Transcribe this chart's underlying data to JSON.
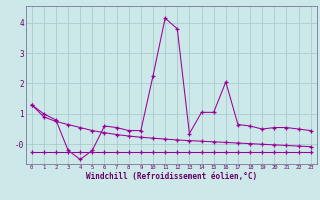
{
  "xlabel": "Windchill (Refroidissement éolien,°C)",
  "background_color": "#cce8e8",
  "grid_color": "#aacccc",
  "line_color": "#990099",
  "x_values": [
    0,
    1,
    2,
    3,
    4,
    5,
    6,
    7,
    8,
    9,
    10,
    11,
    12,
    13,
    14,
    15,
    16,
    17,
    18,
    19,
    20,
    21,
    22,
    23
  ],
  "series1": [
    1.3,
    1.0,
    0.8,
    -0.2,
    -0.5,
    -0.2,
    0.6,
    0.55,
    0.45,
    0.45,
    2.25,
    4.15,
    3.8,
    0.35,
    1.05,
    1.05,
    2.05,
    0.65,
    0.6,
    0.5,
    0.55,
    0.55,
    0.5,
    0.45
  ],
  "series2": [
    -0.25,
    -0.25,
    -0.25,
    -0.25,
    -0.25,
    -0.25,
    -0.25,
    -0.25,
    -0.25,
    -0.25,
    -0.25,
    -0.25,
    -0.25,
    -0.25,
    -0.25,
    -0.25,
    -0.25,
    -0.25,
    -0.25,
    -0.25,
    -0.25,
    -0.25,
    -0.25,
    -0.25
  ],
  "series3": [
    1.3,
    0.9,
    0.75,
    0.65,
    0.55,
    0.45,
    0.38,
    0.32,
    0.27,
    0.23,
    0.2,
    0.17,
    0.14,
    0.12,
    0.1,
    0.08,
    0.06,
    0.04,
    0.02,
    0.0,
    -0.02,
    -0.04,
    -0.06,
    -0.08
  ],
  "ylim": [
    -0.65,
    4.55
  ],
  "ytick_values": [
    0,
    1,
    2,
    3,
    4
  ],
  "ytick_labels": [
    "-0",
    "1",
    "2",
    "3",
    "4"
  ],
  "xlim": [
    -0.5,
    23.5
  ]
}
